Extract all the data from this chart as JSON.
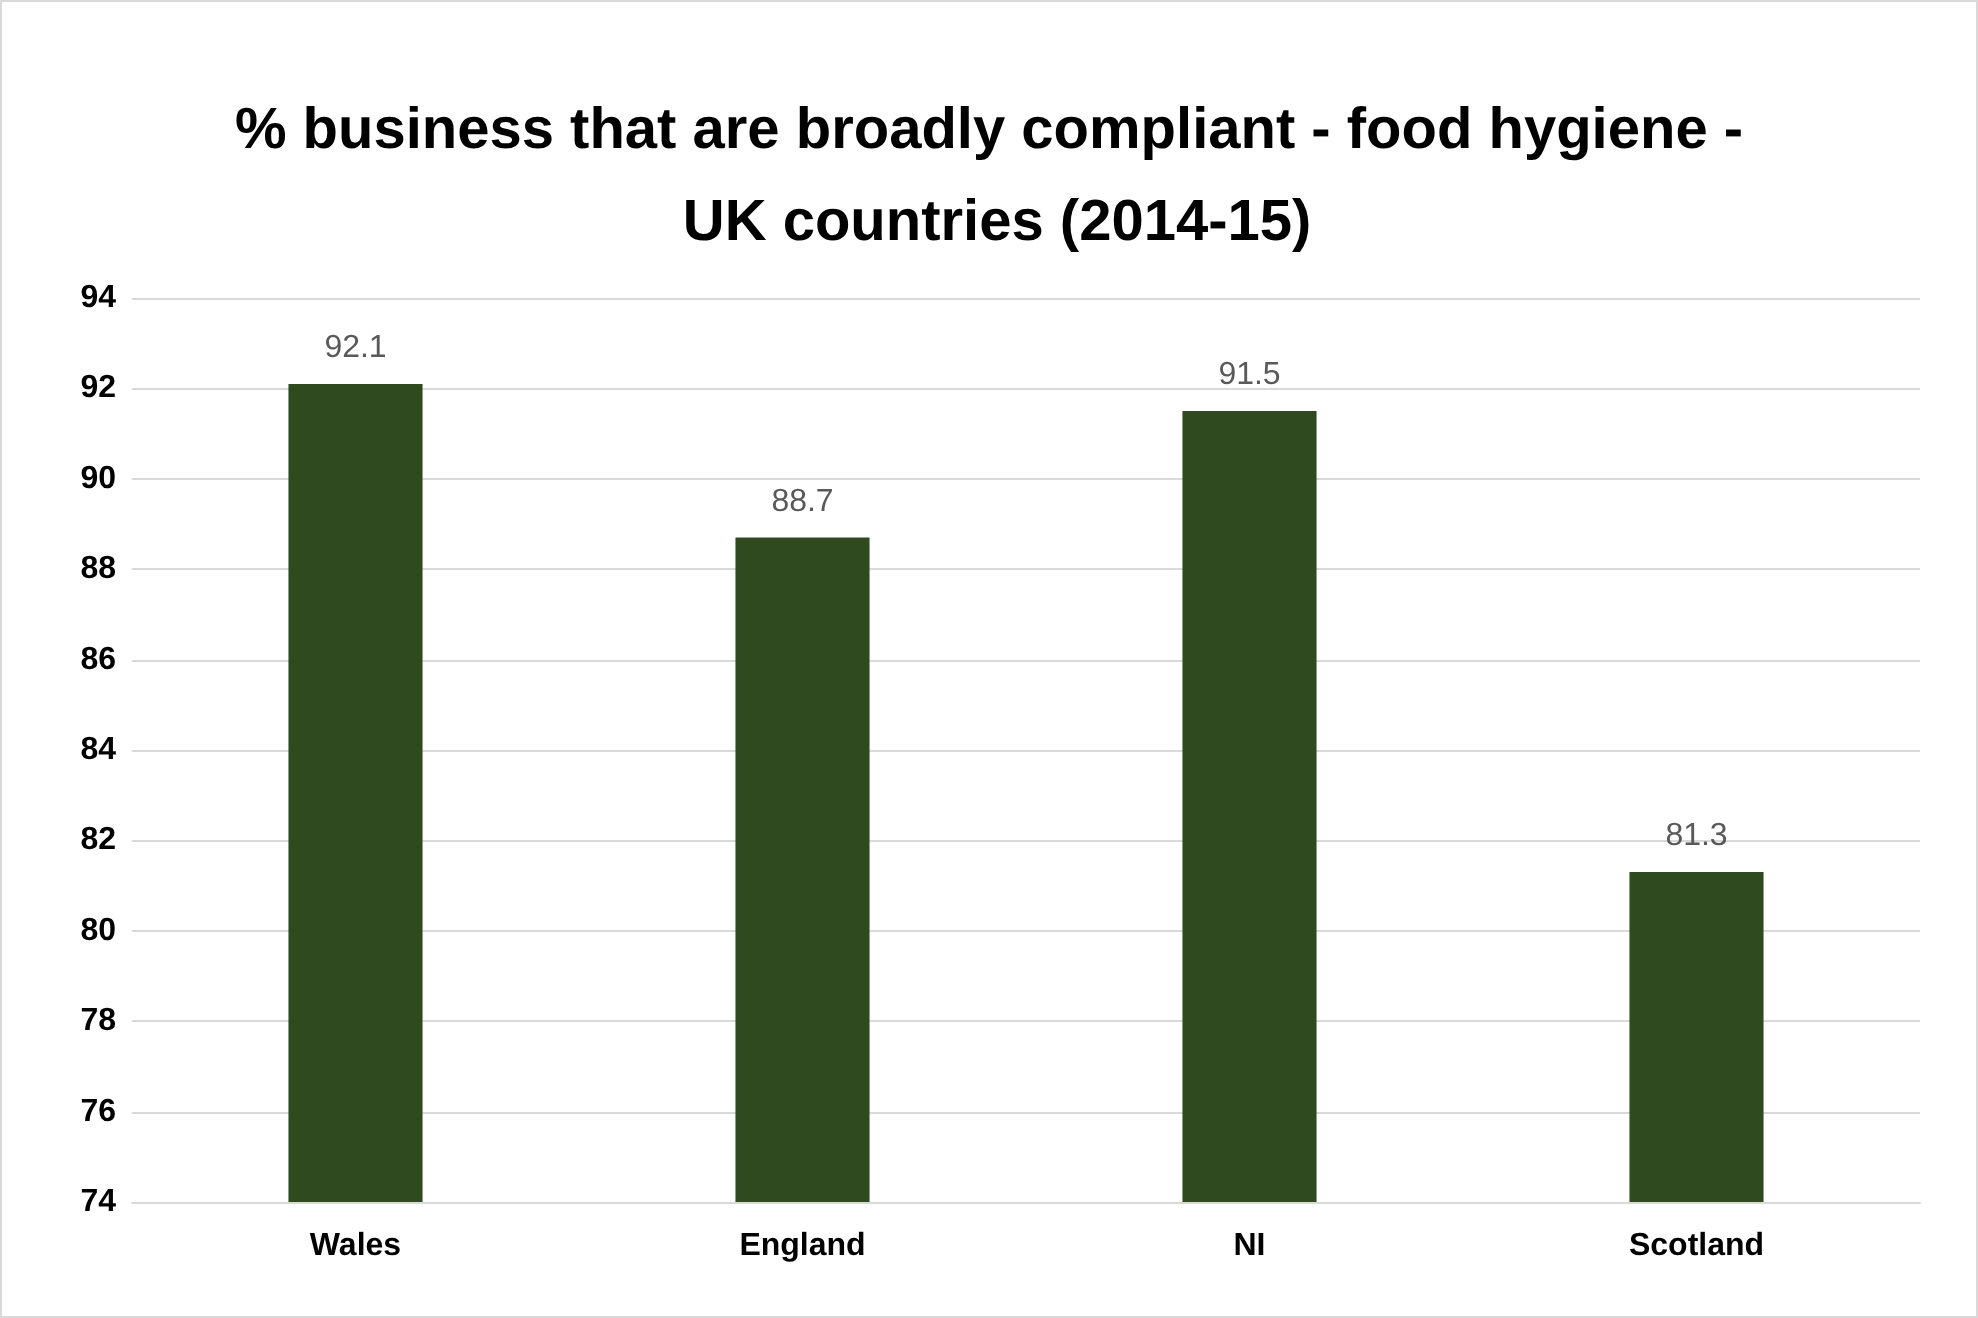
{
  "chart_data": {
    "type": "bar",
    "title": "% business that are broadly compliant - food hygiene - UK countries (2014-15)",
    "categories": [
      "Wales",
      "England",
      "NI",
      "Scotland"
    ],
    "values": [
      92.1,
      88.7,
      91.5,
      81.3
    ],
    "color": "#2f4a1f",
    "ylim": [
      74,
      94
    ],
    "yticks": [
      74,
      76,
      78,
      80,
      82,
      84,
      86,
      88,
      90,
      92,
      94
    ],
    "grid": "y",
    "data_labels": true
  }
}
